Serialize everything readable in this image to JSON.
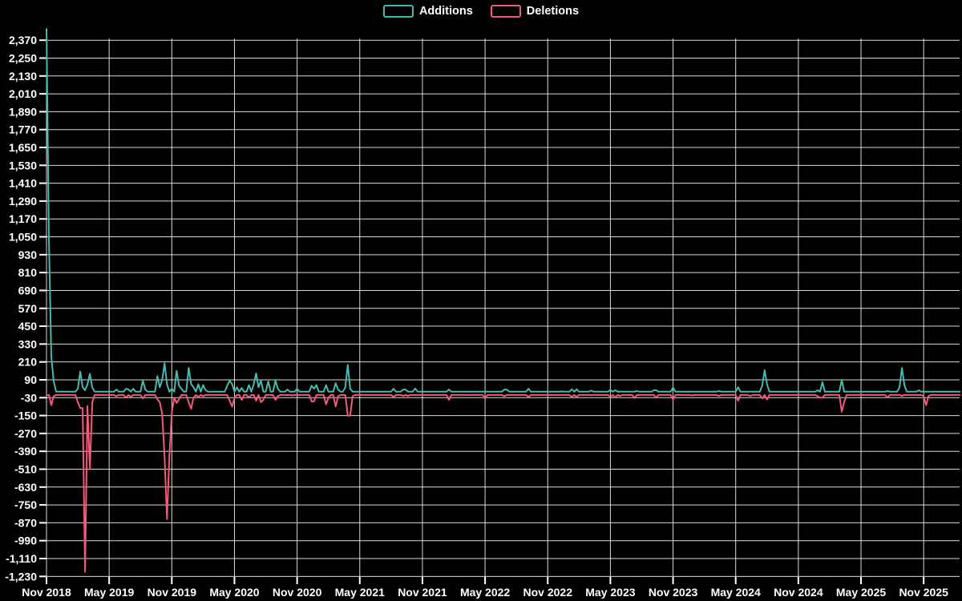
{
  "legend": {
    "items": [
      {
        "label": "Additions",
        "color": "#49b9af"
      },
      {
        "label": "Deletions",
        "color": "#f4587a"
      }
    ]
  },
  "chart_data": {
    "type": "line",
    "title": "",
    "background": "#000000",
    "grid": {
      "show": true,
      "color": "#ffffff"
    },
    "x_axis": {
      "tick_labels": [
        "Nov 2018",
        "May 2019",
        "Nov 2019",
        "May 2020",
        "Nov 2020",
        "May 2021",
        "Nov 2021",
        "May 2022",
        "Nov 2022",
        "May 2023",
        "Nov 2023",
        "May 2024",
        "Nov 2024",
        "May 2025",
        "Nov 2025"
      ],
      "weeks_per_tick": 26,
      "total_weeks": 380
    },
    "y_axis": {
      "tick_step": 120,
      "tick_labels": [
        "2,370",
        "2,250",
        "2,130",
        "2,010",
        "1,890",
        "1,770",
        "1,650",
        "1,530",
        "1,410",
        "1,290",
        "1,170",
        "1,050",
        "930",
        "810",
        "690",
        "570",
        "450",
        "330",
        "210",
        "90",
        "-30",
        "-150",
        "-270",
        "-390",
        "-510",
        "-630",
        "-750",
        "-870",
        "-990",
        "-1,110",
        "-1,230"
      ]
    },
    "series": [
      {
        "name": "Additions",
        "color": "#49b9af",
        "baseline": 10,
        "points": [
          [
            0,
            2446
          ],
          [
            1,
            1040
          ],
          [
            2,
            245
          ],
          [
            3,
            80
          ],
          [
            13,
            30
          ],
          [
            14,
            145
          ],
          [
            15,
            40
          ],
          [
            16,
            20
          ],
          [
            17,
            60
          ],
          [
            18,
            130
          ],
          [
            19,
            40
          ],
          [
            29,
            25
          ],
          [
            33,
            30
          ],
          [
            34,
            25
          ],
          [
            36,
            30
          ],
          [
            40,
            85
          ],
          [
            41,
            25
          ],
          [
            46,
            115
          ],
          [
            47,
            40
          ],
          [
            48,
            90
          ],
          [
            49,
            200
          ],
          [
            50,
            60
          ],
          [
            52,
            30
          ],
          [
            54,
            150
          ],
          [
            55,
            50
          ],
          [
            56,
            30
          ],
          [
            59,
            170
          ],
          [
            60,
            60
          ],
          [
            61,
            40
          ],
          [
            63,
            60
          ],
          [
            65,
            55
          ],
          [
            66,
            20
          ],
          [
            75,
            50
          ],
          [
            76,
            85
          ],
          [
            77,
            60
          ],
          [
            79,
            40
          ],
          [
            81,
            35
          ],
          [
            84,
            55
          ],
          [
            86,
            60
          ],
          [
            87,
            133
          ],
          [
            88,
            40
          ],
          [
            89,
            85
          ],
          [
            92,
            80
          ],
          [
            95,
            85
          ],
          [
            96,
            30
          ],
          [
            100,
            25
          ],
          [
            104,
            30
          ],
          [
            110,
            50
          ],
          [
            111,
            30
          ],
          [
            112,
            55
          ],
          [
            116,
            55
          ],
          [
            120,
            68
          ],
          [
            121,
            25
          ],
          [
            124,
            40
          ],
          [
            125,
            190
          ],
          [
            126,
            30
          ],
          [
            144,
            30
          ],
          [
            148,
            25
          ],
          [
            149,
            25
          ],
          [
            153,
            32
          ],
          [
            167,
            25
          ],
          [
            182,
            12
          ],
          [
            190,
            25
          ],
          [
            191,
            25
          ],
          [
            200,
            30
          ],
          [
            214,
            12
          ],
          [
            218,
            27
          ],
          [
            220,
            27
          ],
          [
            226,
            18
          ],
          [
            234,
            22
          ],
          [
            236,
            20
          ],
          [
            245,
            15
          ],
          [
            252,
            20
          ],
          [
            253,
            20
          ],
          [
            260,
            38
          ],
          [
            279,
            15
          ],
          [
            287,
            40
          ],
          [
            297,
            50
          ],
          [
            298,
            155
          ],
          [
            299,
            60
          ],
          [
            320,
            20
          ],
          [
            322,
            75
          ],
          [
            330,
            90
          ],
          [
            349,
            15
          ],
          [
            354,
            40
          ],
          [
            355,
            170
          ],
          [
            356,
            55
          ],
          [
            362,
            20
          ]
        ]
      },
      {
        "name": "Deletions",
        "color": "#f4587a",
        "baseline": -12,
        "points": [
          [
            0,
            -15
          ],
          [
            2,
            -80
          ],
          [
            3,
            -20
          ],
          [
            13,
            -60
          ],
          [
            14,
            -100
          ],
          [
            15,
            -100
          ],
          [
            16,
            -1200
          ],
          [
            17,
            -85
          ],
          [
            18,
            -510
          ],
          [
            19,
            -60
          ],
          [
            29,
            -20
          ],
          [
            33,
            -30
          ],
          [
            35,
            -25
          ],
          [
            40,
            -35
          ],
          [
            46,
            -40
          ],
          [
            47,
            -60
          ],
          [
            48,
            -140
          ],
          [
            49,
            -430
          ],
          [
            50,
            -845
          ],
          [
            51,
            -420
          ],
          [
            52,
            -130
          ],
          [
            53,
            -30
          ],
          [
            54,
            -65
          ],
          [
            55,
            -40
          ],
          [
            59,
            -60
          ],
          [
            60,
            -105
          ],
          [
            61,
            -30
          ],
          [
            63,
            -25
          ],
          [
            65,
            -20
          ],
          [
            76,
            -50
          ],
          [
            77,
            -90
          ],
          [
            78,
            -30
          ],
          [
            81,
            -45
          ],
          [
            84,
            -30
          ],
          [
            87,
            -50
          ],
          [
            89,
            -60
          ],
          [
            90,
            -45
          ],
          [
            95,
            -45
          ],
          [
            96,
            -20
          ],
          [
            102,
            -15
          ],
          [
            110,
            -55
          ],
          [
            111,
            -55
          ],
          [
            116,
            -75
          ],
          [
            117,
            -30
          ],
          [
            120,
            -90
          ],
          [
            121,
            -20
          ],
          [
            125,
            -150
          ],
          [
            126,
            -150
          ],
          [
            127,
            -20
          ],
          [
            144,
            -25
          ],
          [
            148,
            -18
          ],
          [
            150,
            -18
          ],
          [
            153,
            -12
          ],
          [
            167,
            -45
          ],
          [
            182,
            -35
          ],
          [
            190,
            -20
          ],
          [
            197,
            -12
          ],
          [
            200,
            -25
          ],
          [
            218,
            -25
          ],
          [
            220,
            -25
          ],
          [
            234,
            -25
          ],
          [
            236,
            -28
          ],
          [
            238,
            -18
          ],
          [
            244,
            -32
          ],
          [
            247,
            -12
          ],
          [
            253,
            -30
          ],
          [
            260,
            -42
          ],
          [
            268,
            -15
          ],
          [
            279,
            -18
          ],
          [
            287,
            -50
          ],
          [
            292,
            -18
          ],
          [
            297,
            -35
          ],
          [
            299,
            -42
          ],
          [
            306,
            -12
          ],
          [
            320,
            -20
          ],
          [
            321,
            -30
          ],
          [
            322,
            -30
          ],
          [
            330,
            -125
          ],
          [
            331,
            -60
          ],
          [
            349,
            -28
          ],
          [
            355,
            -18
          ],
          [
            364,
            -20
          ],
          [
            365,
            -80
          ],
          [
            366,
            -20
          ]
        ]
      }
    ]
  }
}
